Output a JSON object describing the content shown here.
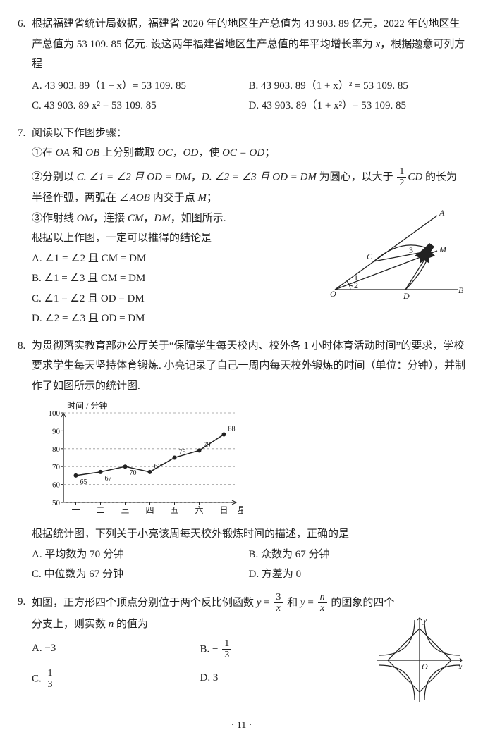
{
  "q6": {
    "num": "6.",
    "text": "根据福建省统计局数据，福建省 2020 年的地区生产总值为 43 903. 89 亿元，2022 年的地区生产总值为 53 109. 85 亿元. 设这两年福建省地区生产总值的年平均增长率为 ",
    "var": "x",
    "text2": "，根据题意可列方程",
    "A": "A. 43 903. 89（1 + x）= 53 109. 85",
    "B": "B. 43 903. 89（1 + x）² = 53 109. 85",
    "C": "C. 43 903. 89 x² = 53 109. 85",
    "D": "D. 43 903. 89（1 + x²）= 53 109. 85"
  },
  "q7": {
    "num": "7.",
    "intro": "阅读以下作图步骤：",
    "s1a": "①在 ",
    "s1b": " 和 ",
    "s1c": " 上分别截取 ",
    "s1d": "，",
    "s1e": "，使 ",
    "s1f": "；",
    "OA": "OA",
    "OB": "OB",
    "OC": "OC",
    "OD": "OD",
    "eq1": "OC = OD",
    "s2a": "②分别以 ",
    "s2b": "，",
    "s2c": " 为圆心，以大于 ",
    "s2d": " 的长为半径作弧，两弧在 ∠",
    "s2e": " 内交于点 ",
    "s2f": "；",
    "C": "C. ∠1 = ∠2 且 OD = DM",
    "D": "D. ∠2 = ∠3 且 OD = DM",
    "CD": "CD",
    "AOB": "AOB",
    "M": "M",
    "half_n": "1",
    "half_d": "2",
    "s3a": "③作射线 ",
    "s3b": "，连接 ",
    "s3c": "，",
    "s3d": "，如图所示.",
    "OM": "OM",
    "CM": "CM",
    "DM": "DM",
    "concl": "根据以上作图，一定可以推得的结论是",
    "A": "A. ∠1 = ∠2 且 CM = DM",
    "B": "B. ∠1 = ∠3 且 CM = DM",
    "fig": {
      "labels": {
        "O": "O",
        "A": "A",
        "B": "B",
        "C": "C",
        "D": "D",
        "M": "M",
        "a1": "1",
        "a2": "2",
        "a3": "3"
      },
      "stroke": "#222"
    }
  },
  "q8": {
    "num": "8.",
    "text": "为贯彻落实教育部办公厅关于“保障学生每天校内、校外各 1 小时体育活动时间”的要求，学校要求学生每天坚持体育锻炼. 小亮记录了自己一周内每天校外锻炼的时间（单位：分钟），并制作了如图所示的统计图.",
    "concl": "根据统计图，下列关于小亮该周每天校外锻炼时间的描述，正确的是",
    "A": "A. 平均数为 70 分钟",
    "B": "B. 众数为 67 分钟",
    "C": "C. 中位数为 67 分钟",
    "D": "D. 方差为 0",
    "chart": {
      "ylabel": "时间 / 分钟",
      "xlabel": "星期",
      "yticks": [
        "50",
        "60",
        "70",
        "80",
        "90",
        "100"
      ],
      "xticks": [
        "一",
        "二",
        "三",
        "四",
        "五",
        "六",
        "日"
      ],
      "values": [
        65,
        67,
        70,
        67,
        75,
        79,
        88
      ],
      "point_labels": [
        "65",
        "67",
        "70",
        "67",
        "75",
        "79",
        "88"
      ],
      "line_color": "#222",
      "grid_color": "#999",
      "bg": "#ffffff"
    }
  },
  "q9": {
    "num": "9.",
    "t1": "如图，正方形四个顶点分别位于两个反比例函数 ",
    "t2": " 和 ",
    "t3": " 的图象的四个",
    "t4": "分支上，则实数 ",
    "t5": " 的值为",
    "y": "y",
    "eq": " = ",
    "n": "n",
    "x": "x",
    "three": "3",
    "A": "A. −3",
    "B_pre": "B. ",
    "B_n": "1",
    "B_d": "3",
    "B_sign": "− ",
    "C_pre": "C. ",
    "C_n": "1",
    "C_d": "3",
    "D": "D. 3",
    "fig": {
      "stroke": "#222",
      "O": "O",
      "x": "x",
      "y": "y"
    }
  },
  "page": "· 11 ·"
}
